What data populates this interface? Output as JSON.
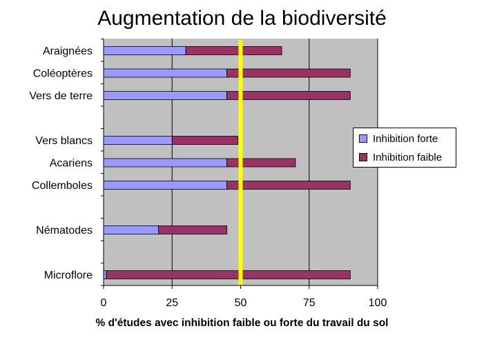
{
  "chart_data": {
    "type": "bar",
    "orientation": "horizontal",
    "stacked": true,
    "title": "Augmentation de la biodiversité",
    "xlabel": "% d'études avec inhibition faible ou forte du travail du sol",
    "ylabel": "",
    "xlim": [
      0,
      100
    ],
    "x_ticks": [
      "0",
      "25",
      "50",
      "75",
      "100"
    ],
    "grid": "vertical gridlines at 25, 75, 100",
    "reference_line": {
      "x": 50,
      "color": "#ffff00"
    },
    "categories": [
      "Araignées",
      "Coléoptères",
      "Vers de terre",
      "Vers blancs",
      "Acariens",
      "Collemboles",
      "Nématodes",
      "Microflore"
    ],
    "series": [
      {
        "name": "Inhibition forte",
        "color": "#9999ff",
        "values": [
          30,
          45,
          45,
          25,
          45,
          45,
          20,
          1
        ]
      },
      {
        "name": "Inhibition faible",
        "color": "#993366",
        "values": [
          35,
          45,
          45,
          24,
          25,
          45,
          25,
          89
        ]
      }
    ],
    "legend_position": "right"
  },
  "colors": {
    "plot_background": "#c0c0c0",
    "reference_line": "#ffff00"
  }
}
